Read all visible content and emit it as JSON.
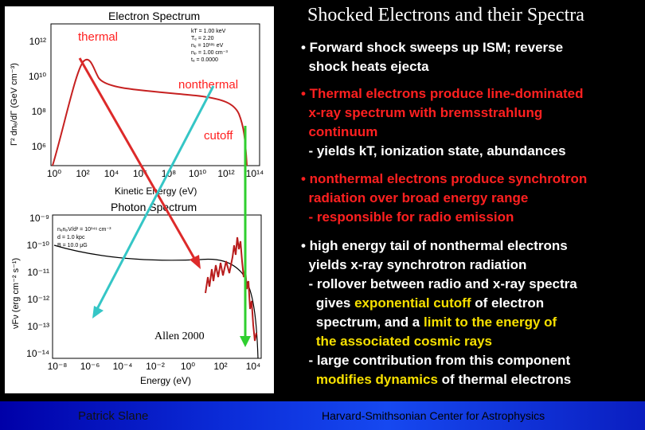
{
  "slide": {
    "title": "Shocked Electrons and their Spectra",
    "footer_left": "Patrick Slane",
    "footer_right": "Harvard-Smithsonian Center for Astrophysics"
  },
  "bullets": [
    {
      "lines": [
        "• Forward shock sweeps up ISM; reverse",
        "  shock heats ejecta"
      ],
      "color": "#ffffff"
    },
    {
      "lines": [
        "• Thermal electrons produce line-dominated",
        "  x-ray spectrum with bremsstrahlung",
        "  continuum",
        "  - yields kT, ionization state, abundances"
      ],
      "color": "#ff2020"
    },
    {
      "lines": [
        "• nonthermal electrons produce synchrotron",
        "  radiation over broad energy range",
        "  - responsible for radio emission"
      ],
      "color": "#ff2020"
    }
  ],
  "bullet4": {
    "l1": "• high energy tail of nonthermal electrons",
    "l2": "  yields x-ray synchrotron radiation",
    "l3": "  - rollover between radio and x-ray spectra",
    "l4_pre": "    gives ",
    "l4_hl": "exponential cutoff",
    "l4_post": " of electron",
    "l5_pre": "    spectrum, and a ",
    "l5_hl": "limit to the energy of",
    "l6_hl": "    the associated cosmic rays",
    "l7": "  - large contribution from this component",
    "l8_hl": "    modifies dynamics",
    "l8_post": " of thermal electrons"
  },
  "figure": {
    "top_title": "Electron Spectrum",
    "top_ylabel": "Γ² dnₑ/dΓ (GeV cm⁻³)",
    "top_xlabel": "Kinetic Energy (eV)",
    "top_params": [
      "kT = 1.00 keV",
      "Tₑ = 2.20",
      "nₑ = 10¹²⁶ eV",
      "nₚ = 1.00 cm⁻³",
      "tₑ = 0.0000"
    ],
    "top_yticks": [
      "10¹²",
      "10¹⁰",
      "10⁸",
      "10⁶"
    ],
    "top_xticks": [
      "10⁰",
      "10²",
      "10⁴",
      "10⁶",
      "10⁸",
      "10¹⁰",
      "10¹²",
      "10¹⁴"
    ],
    "label_thermal": "thermal",
    "label_nonthermal": "nonthermal",
    "label_cutoff": "cutoff",
    "bottom_title": "Photon Spectrum",
    "bottom_ylabel": "νFν (erg cm⁻² s⁻¹)",
    "bottom_xlabel": "Energy (eV)",
    "bottom_params": [
      "nₑnₚV/d² = 10¹⁴⁶ cm⁻³",
      "d = 1.0 kpc",
      "B = 10.0 μG"
    ],
    "bottom_yticks": [
      "10⁻⁹",
      "10⁻¹⁰",
      "10⁻¹¹",
      "10⁻¹²",
      "10⁻¹³",
      "10⁻¹⁴"
    ],
    "bottom_xticks": [
      "10⁻⁸",
      "10⁻⁶",
      "10⁻⁴",
      "10⁻²",
      "10⁰",
      "10²",
      "10⁴"
    ],
    "citation": "Allen 2000"
  },
  "colors": {
    "arrow_red": "#dd2a2a",
    "arrow_cyan": "#35c6c6",
    "arrow_green": "#2fcf2f",
    "highlight": "#f7e000",
    "label_red": "#ff2020"
  }
}
